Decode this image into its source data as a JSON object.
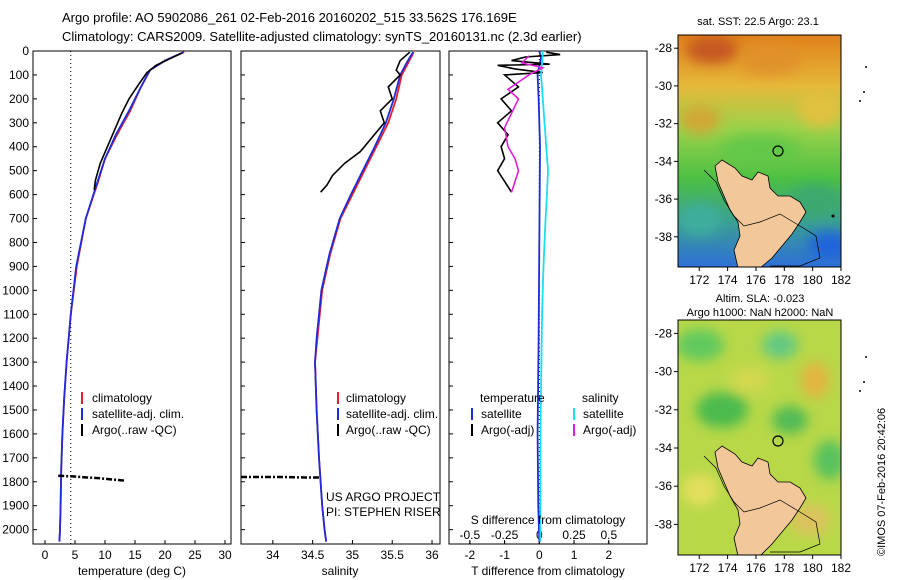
{
  "header": {
    "line1": "Argo profile: AO 5902086_261 02-Feb-2016 20160202_515 33.562S 176.169E",
    "line2": "Climatology: CARS2009. Satellite-adjusted climatology: synTS_20160131.nc (2.3d earlier)"
  },
  "stamp": "©IMOS 07-Feb-2016 20:42:06",
  "colors": {
    "climatology": "#e8202a",
    "satellite": "#1f2bd8",
    "argo": "#000000",
    "satellite_s": "#19e0f0",
    "argo_s": "#e020d8"
  },
  "chart_data": [
    {
      "type": "line",
      "panel": "temperature",
      "xlabel": "temperature (deg C)",
      "ylabel": "",
      "xlim": [
        -2,
        31
      ],
      "ylim": [
        2060,
        0
      ],
      "xticks": [
        "0",
        "5",
        "10",
        "15",
        "20",
        "25",
        "30"
      ],
      "yticks": [
        "0",
        "100",
        "200",
        "300",
        "400",
        "500",
        "600",
        "700",
        "800",
        "900",
        "1000",
        "1100",
        "1200",
        "1300",
        "1400",
        "1500",
        "1600",
        "1700",
        "1800",
        "1900",
        "2000"
      ],
      "reference_line_x": 4.3,
      "legend": [
        "climatology",
        "satellite-adj. clim.",
        "Argo(..raw -QC)"
      ],
      "series": [
        {
          "name": "climatology",
          "color": "#e8202a",
          "x": [
            23.2,
            20,
            17.5,
            16,
            14.2,
            12,
            10,
            8.8,
            6.8,
            5.3,
            4.3,
            3.6,
            3.2,
            2.9,
            2.7,
            2.6,
            2.5,
            2.4
          ],
          "y": [
            5,
            40,
            80,
            150,
            250,
            350,
            450,
            550,
            700,
            900,
            1100,
            1300,
            1450,
            1600,
            1750,
            1900,
            2000,
            2050
          ]
        },
        {
          "name": "satellite-adj. clim.",
          "color": "#1f2bd8",
          "x": [
            23.1,
            20,
            17.5,
            16,
            14,
            11.8,
            10,
            8.7,
            6.8,
            5.2,
            4.3,
            3.6,
            3.2,
            2.9,
            2.7,
            2.6,
            2.5,
            2.4
          ],
          "y": [
            5,
            40,
            80,
            150,
            250,
            350,
            450,
            550,
            700,
            900,
            1100,
            1300,
            1450,
            1600,
            1750,
            1900,
            2000,
            2050
          ]
        },
        {
          "name": "Argo(..raw -QC)",
          "color": "#000000",
          "x": [
            22.8,
            21,
            18.5,
            17,
            15.6,
            14,
            12.8,
            11.6,
            10.4,
            9.2,
            8.4,
            8.2
          ],
          "y": [
            8,
            30,
            60,
            90,
            140,
            200,
            260,
            330,
            400,
            470,
            540,
            580
          ],
          "x2": [
            2.2,
            5,
            7,
            9,
            11,
            13.2
          ],
          "y2": [
            1775,
            1778,
            1782,
            1785,
            1790,
            1795
          ]
        }
      ]
    },
    {
      "type": "line",
      "panel": "salinity",
      "xlabel": "salinity",
      "xlim": [
        33.6,
        36.1
      ],
      "ylim": [
        2060,
        0
      ],
      "xticks": [
        "34",
        "34.5",
        "35",
        "35.5",
        "36"
      ],
      "legend": [
        "climatology",
        "satellite-adj. clim.",
        "Argo(..raw -QC)"
      ],
      "annotation": [
        "US ARGO PROJECT",
        "PI: STEPHEN RISER"
      ],
      "series": [
        {
          "name": "climatology",
          "color": "#e8202a",
          "x": [
            35.77,
            35.7,
            35.62,
            35.55,
            35.45,
            35.3,
            35.15,
            35.0,
            34.85,
            34.72,
            34.62,
            34.56,
            34.53,
            34.55,
            34.58,
            34.62,
            34.65,
            34.67
          ],
          "y": [
            5,
            50,
            100,
            200,
            300,
            400,
            500,
            600,
            700,
            850,
            1000,
            1200,
            1300,
            1500,
            1700,
            1900,
            2000,
            2050
          ]
        },
        {
          "name": "satellite-adj. clim.",
          "color": "#1f2bd8",
          "x": [
            35.76,
            35.68,
            35.6,
            35.52,
            35.42,
            35.28,
            35.13,
            34.98,
            34.84,
            34.71,
            34.61,
            34.55,
            34.53,
            34.55,
            34.58,
            34.62,
            34.65,
            34.67
          ],
          "y": [
            5,
            50,
            100,
            200,
            300,
            400,
            500,
            600,
            700,
            850,
            1000,
            1200,
            1300,
            1500,
            1700,
            1900,
            2000,
            2050
          ]
        },
        {
          "name": "Argo(..raw -QC)",
          "color": "#000000",
          "x": [
            35.72,
            35.6,
            35.55,
            35.6,
            35.45,
            35.5,
            35.35,
            35.4,
            35.25,
            35.1,
            34.9,
            34.75,
            34.68,
            34.6
          ],
          "y": [
            5,
            40,
            80,
            100,
            150,
            200,
            250,
            300,
            360,
            420,
            470,
            520,
            560,
            590
          ],
          "x2": [
            33.6,
            34.1,
            34.4,
            34.6
          ],
          "y2": [
            1780,
            1780,
            1782,
            1782
          ]
        }
      ]
    },
    {
      "type": "line",
      "panel": "difference",
      "xlabel": "T difference from climatology",
      "xlabel_top": "S difference from climatology",
      "xlim": [
        -2.6,
        3.1
      ],
      "ylim": [
        2060,
        0
      ],
      "xticks": [
        "-2",
        "-1",
        "0",
        "1",
        "2"
      ],
      "xticks_top": [
        "-0.5",
        "-0.25",
        "0",
        "0.25",
        "0.5"
      ],
      "legend_titles": [
        "temperature",
        "salinity"
      ],
      "legend": [
        "satellite",
        "Argo(-adj)",
        "satellite",
        "Argo(-adj)"
      ],
      "series": [
        {
          "name": "satellite",
          "color": "#1f2bd8",
          "x": [
            0,
            0.05,
            0.0,
            -0.05,
            -0.02,
            0.02,
            0.0,
            -0.02,
            -0.05,
            -0.03,
            0
          ],
          "y": [
            0,
            30,
            60,
            100,
            200,
            400,
            800,
            1200,
            1600,
            1900,
            2050
          ]
        },
        {
          "name": "Argo(-adj)",
          "color": "#000000",
          "x": [
            0.2,
            0.6,
            -0.4,
            -0.8,
            0.3,
            -1.2,
            -0.7,
            0.1,
            -1.0,
            -0.6,
            -1.1,
            -0.8,
            -1.2,
            -0.9,
            -1.1,
            -1.0,
            -1.2,
            -0.8
          ],
          "y": [
            5,
            15,
            25,
            40,
            55,
            60,
            75,
            90,
            100,
            150,
            200,
            250,
            300,
            350,
            400,
            450,
            500,
            590
          ]
        },
        {
          "name": "satellite",
          "color": "#19e0f0",
          "x": [
            0.1,
            0.08,
            0.05,
            0.1,
            0.15,
            0.2,
            0.25,
            0.22,
            0.18,
            0.12,
            0.08,
            0.05,
            0.03,
            0.03
          ],
          "y": [
            0,
            50,
            100,
            200,
            300,
            400,
            500,
            600,
            700,
            900,
            1100,
            1400,
            1700,
            2050
          ]
        },
        {
          "name": "Argo(-adj)",
          "color": "#e020d8",
          "x": [
            -0.3,
            -0.5,
            0.1,
            -0.3,
            -0.6,
            -0.9,
            -0.6,
            -0.8,
            -1.0,
            -0.9,
            -0.7,
            -0.6,
            -0.8
          ],
          "y": [
            20,
            50,
            70,
            100,
            130,
            160,
            200,
            260,
            320,
            400,
            450,
            500,
            590
          ]
        }
      ]
    },
    {
      "type": "heatmap",
      "panel": "map-sst",
      "title": "sat. SST: 22.5 Argo: 23.1",
      "xlim": [
        170.5,
        182
      ],
      "ylim": [
        -39.6,
        -27.3
      ],
      "xticks": [
        "172",
        "174",
        "176",
        "178",
        "180",
        "182"
      ],
      "yticks": [
        "-28",
        "-30",
        "-32",
        "-34",
        "-36",
        "-38"
      ],
      "argo_position": [
        176.169,
        -33.562
      ]
    },
    {
      "type": "heatmap",
      "panel": "map-sla",
      "title": "Altim. SLA: -0.023",
      "subtitle": "Argo h1000: NaN h2000: NaN",
      "xlim": [
        170.5,
        182
      ],
      "ylim": [
        -39.6,
        -27.3
      ],
      "xticks": [
        "172",
        "174",
        "176",
        "178",
        "180",
        "182"
      ],
      "yticks": [
        "-28",
        "-30",
        "-32",
        "-34",
        "-36",
        "-38"
      ],
      "argo_position": [
        176.169,
        -33.562
      ]
    }
  ]
}
